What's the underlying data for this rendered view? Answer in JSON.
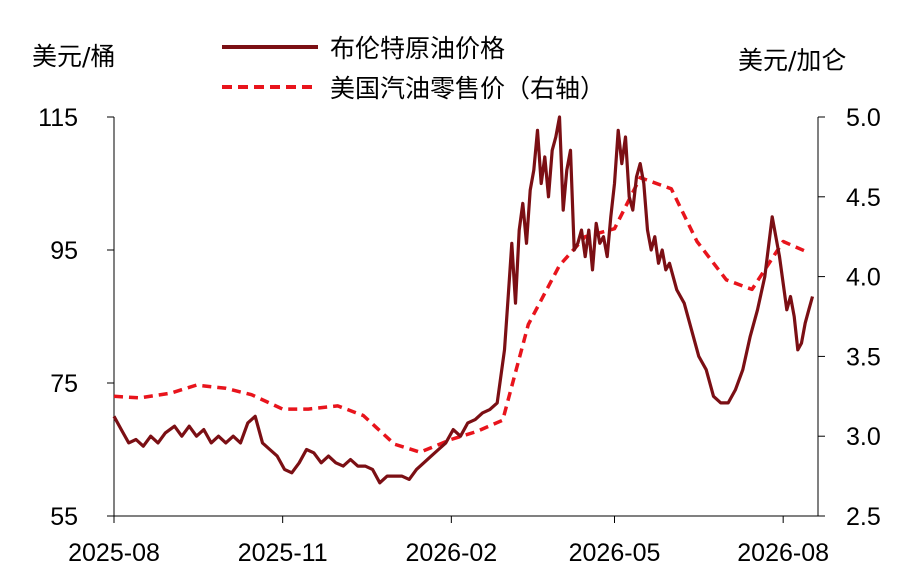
{
  "chart_data": {
    "type": "line",
    "ylabel": "美元/桶",
    "y2label": "美元/加仑",
    "ylim": [
      55,
      115
    ],
    "y2lim": [
      2.5,
      5.0
    ],
    "yticks": [
      "55",
      "75",
      "95",
      "115"
    ],
    "y2ticks": [
      "2.5",
      "3.0",
      "3.5",
      "4.0",
      "4.5",
      "5.0"
    ],
    "xticks": [
      "2025-08",
      "2025-11",
      "2026-02",
      "2026-05",
      "2026-08"
    ],
    "xlim": [
      "2025-08-01",
      "2026-08-20"
    ],
    "legend_position": "top",
    "series": [
      {
        "name": "布伦特原油价格",
        "axis": "left",
        "color": "#7b0f14",
        "style": "solid",
        "points": [
          [
            "2025-08-01",
            70
          ],
          [
            "2025-08-05",
            68
          ],
          [
            "2025-08-09",
            66
          ],
          [
            "2025-08-13",
            66.5
          ],
          [
            "2025-08-17",
            65.5
          ],
          [
            "2025-08-21",
            67
          ],
          [
            "2025-08-25",
            66
          ],
          [
            "2025-08-29",
            67.5
          ],
          [
            "2025-09-03",
            68.5
          ],
          [
            "2025-09-07",
            67
          ],
          [
            "2025-09-11",
            68.5
          ],
          [
            "2025-09-15",
            67
          ],
          [
            "2025-09-19",
            68
          ],
          [
            "2025-09-23",
            66
          ],
          [
            "2025-09-27",
            67
          ],
          [
            "2025-10-01",
            66
          ],
          [
            "2025-10-05",
            67
          ],
          [
            "2025-10-09",
            66
          ],
          [
            "2025-10-13",
            69
          ],
          [
            "2025-10-17",
            70
          ],
          [
            "2025-10-21",
            66
          ],
          [
            "2025-10-25",
            65
          ],
          [
            "2025-10-29",
            64
          ],
          [
            "2025-11-02",
            62
          ],
          [
            "2025-11-06",
            61.5
          ],
          [
            "2025-11-10",
            63
          ],
          [
            "2025-11-14",
            65
          ],
          [
            "2025-11-18",
            64.5
          ],
          [
            "2025-11-22",
            63
          ],
          [
            "2025-11-26",
            64
          ],
          [
            "2025-11-30",
            63
          ],
          [
            "2025-12-04",
            62.5
          ],
          [
            "2025-12-08",
            63.5
          ],
          [
            "2025-12-12",
            62.5
          ],
          [
            "2025-12-16",
            62.5
          ],
          [
            "2025-12-20",
            62
          ],
          [
            "2025-12-24",
            60
          ],
          [
            "2025-12-28",
            61
          ],
          [
            "2026-01-01",
            61
          ],
          [
            "2026-01-05",
            61
          ],
          [
            "2026-01-09",
            60.5
          ],
          [
            "2026-01-13",
            62
          ],
          [
            "2026-01-17",
            63
          ],
          [
            "2026-01-21",
            64
          ],
          [
            "2026-01-25",
            65
          ],
          [
            "2026-01-29",
            66
          ],
          [
            "2026-02-02",
            68
          ],
          [
            "2026-02-06",
            67
          ],
          [
            "2026-02-10",
            69
          ],
          [
            "2026-02-14",
            69.5
          ],
          [
            "2026-02-18",
            70.5
          ],
          [
            "2026-02-22",
            71
          ],
          [
            "2026-02-26",
            72
          ],
          [
            "2026-03-02",
            80
          ],
          [
            "2026-03-04",
            88
          ],
          [
            "2026-03-06",
            96
          ],
          [
            "2026-03-08",
            87
          ],
          [
            "2026-03-10",
            98
          ],
          [
            "2026-03-12",
            102
          ],
          [
            "2026-03-14",
            96
          ],
          [
            "2026-03-16",
            104
          ],
          [
            "2026-03-18",
            107
          ],
          [
            "2026-03-20",
            113
          ],
          [
            "2026-03-22",
            105
          ],
          [
            "2026-03-24",
            109
          ],
          [
            "2026-03-26",
            103
          ],
          [
            "2026-03-28",
            110
          ],
          [
            "2026-03-30",
            112
          ],
          [
            "2026-04-01",
            115
          ],
          [
            "2026-04-03",
            101
          ],
          [
            "2026-04-05",
            107
          ],
          [
            "2026-04-07",
            110
          ],
          [
            "2026-04-09",
            95
          ],
          [
            "2026-04-11",
            96
          ],
          [
            "2026-04-13",
            98
          ],
          [
            "2026-04-15",
            94
          ],
          [
            "2026-04-17",
            98
          ],
          [
            "2026-04-19",
            92
          ],
          [
            "2026-04-21",
            99
          ],
          [
            "2026-04-23",
            96
          ],
          [
            "2026-04-25",
            97
          ],
          [
            "2026-04-27",
            94
          ],
          [
            "2026-04-29",
            100
          ],
          [
            "2026-05-01",
            105
          ],
          [
            "2026-05-03",
            113
          ],
          [
            "2026-05-05",
            108
          ],
          [
            "2026-05-07",
            112
          ],
          [
            "2026-05-09",
            103
          ],
          [
            "2026-05-11",
            101
          ],
          [
            "2026-05-13",
            106
          ],
          [
            "2026-05-15",
            108
          ],
          [
            "2026-05-17",
            105
          ],
          [
            "2026-05-19",
            98
          ],
          [
            "2026-05-21",
            95
          ],
          [
            "2026-05-23",
            97
          ],
          [
            "2026-05-25",
            93
          ],
          [
            "2026-05-27",
            95
          ],
          [
            "2026-05-29",
            92
          ],
          [
            "2026-05-31",
            93
          ],
          [
            "2026-06-04",
            89
          ],
          [
            "2026-06-08",
            87
          ],
          [
            "2026-06-12",
            83
          ],
          [
            "2026-06-16",
            79
          ],
          [
            "2026-06-20",
            77
          ],
          [
            "2026-06-24",
            73
          ],
          [
            "2026-06-28",
            72
          ],
          [
            "2026-07-02",
            72
          ],
          [
            "2026-07-06",
            74
          ],
          [
            "2026-07-10",
            77
          ],
          [
            "2026-07-14",
            82
          ],
          [
            "2026-07-18",
            86
          ],
          [
            "2026-07-22",
            91
          ],
          [
            "2026-07-26",
            100
          ],
          [
            "2026-07-30",
            94
          ],
          [
            "2026-08-03",
            86
          ],
          [
            "2026-08-05",
            88
          ],
          [
            "2026-08-07",
            85
          ],
          [
            "2026-08-09",
            80
          ],
          [
            "2026-08-11",
            81
          ],
          [
            "2026-08-13",
            84
          ],
          [
            "2026-08-15",
            86
          ],
          [
            "2026-08-17",
            88
          ]
        ]
      },
      {
        "name": "美国汽油零售价（右轴）",
        "axis": "right",
        "color": "#e8141c",
        "style": "dashed",
        "points": [
          [
            "2025-08-01",
            3.25
          ],
          [
            "2025-08-15",
            3.24
          ],
          [
            "2025-09-01",
            3.27
          ],
          [
            "2025-09-15",
            3.32
          ],
          [
            "2025-10-01",
            3.3
          ],
          [
            "2025-10-15",
            3.26
          ],
          [
            "2025-11-01",
            3.17
          ],
          [
            "2025-11-15",
            3.17
          ],
          [
            "2025-12-01",
            3.19
          ],
          [
            "2025-12-15",
            3.13
          ],
          [
            "2026-01-01",
            2.95
          ],
          [
            "2026-01-15",
            2.9
          ],
          [
            "2026-02-01",
            2.98
          ],
          [
            "2026-02-15",
            3.03
          ],
          [
            "2026-03-01",
            3.1
          ],
          [
            "2026-03-15",
            3.7
          ],
          [
            "2026-04-01",
            4.07
          ],
          [
            "2026-04-15",
            4.25
          ],
          [
            "2026-05-01",
            4.3
          ],
          [
            "2026-05-15",
            4.62
          ],
          [
            "2026-06-01",
            4.55
          ],
          [
            "2026-06-15",
            4.22
          ],
          [
            "2026-07-01",
            3.98
          ],
          [
            "2026-07-15",
            3.92
          ],
          [
            "2026-08-01",
            4.22
          ],
          [
            "2026-08-15",
            4.15
          ]
        ]
      }
    ]
  }
}
